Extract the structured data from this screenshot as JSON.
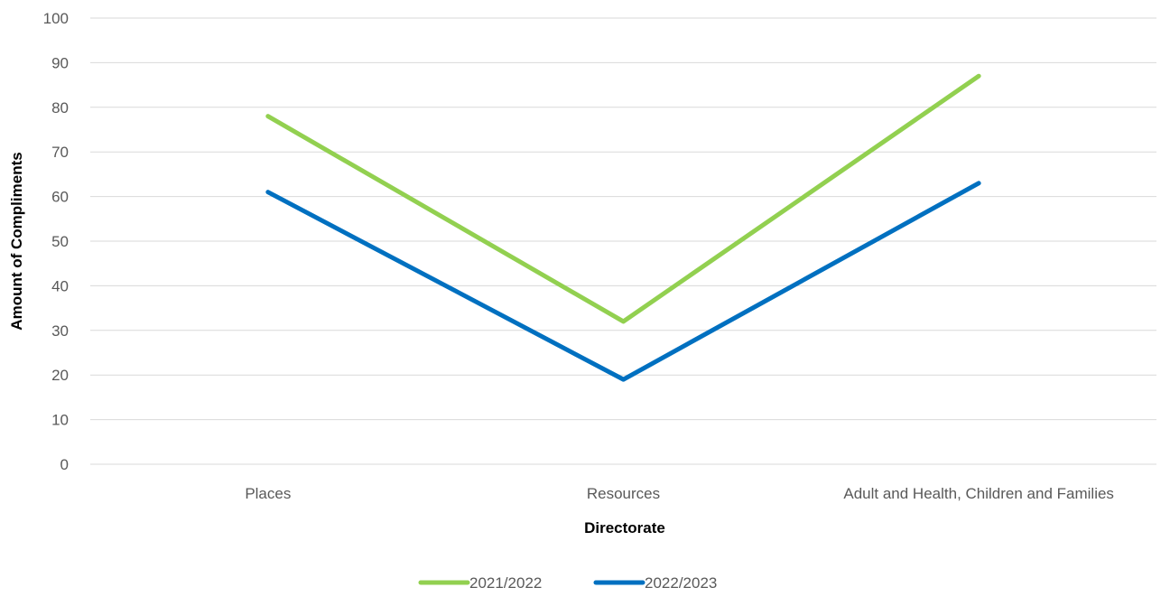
{
  "chart_data": {
    "type": "line",
    "title": "",
    "xlabel": "Directorate",
    "ylabel": "Amount of Compliments",
    "categories": [
      "Places",
      "Resources",
      "Adult and Health, Children and Families"
    ],
    "series": [
      {
        "name": "2021/2022",
        "values": [
          78,
          32,
          87
        ],
        "color": "#92d050"
      },
      {
        "name": "2022/2023",
        "values": [
          61,
          19,
          63
        ],
        "color": "#0070c0"
      }
    ],
    "ylim": [
      0,
      100
    ],
    "yticks": [
      "0",
      "10",
      "20",
      "30",
      "40",
      "50",
      "60",
      "70",
      "80",
      "90",
      "100"
    ],
    "grid": true,
    "legend_position": "bottom"
  }
}
